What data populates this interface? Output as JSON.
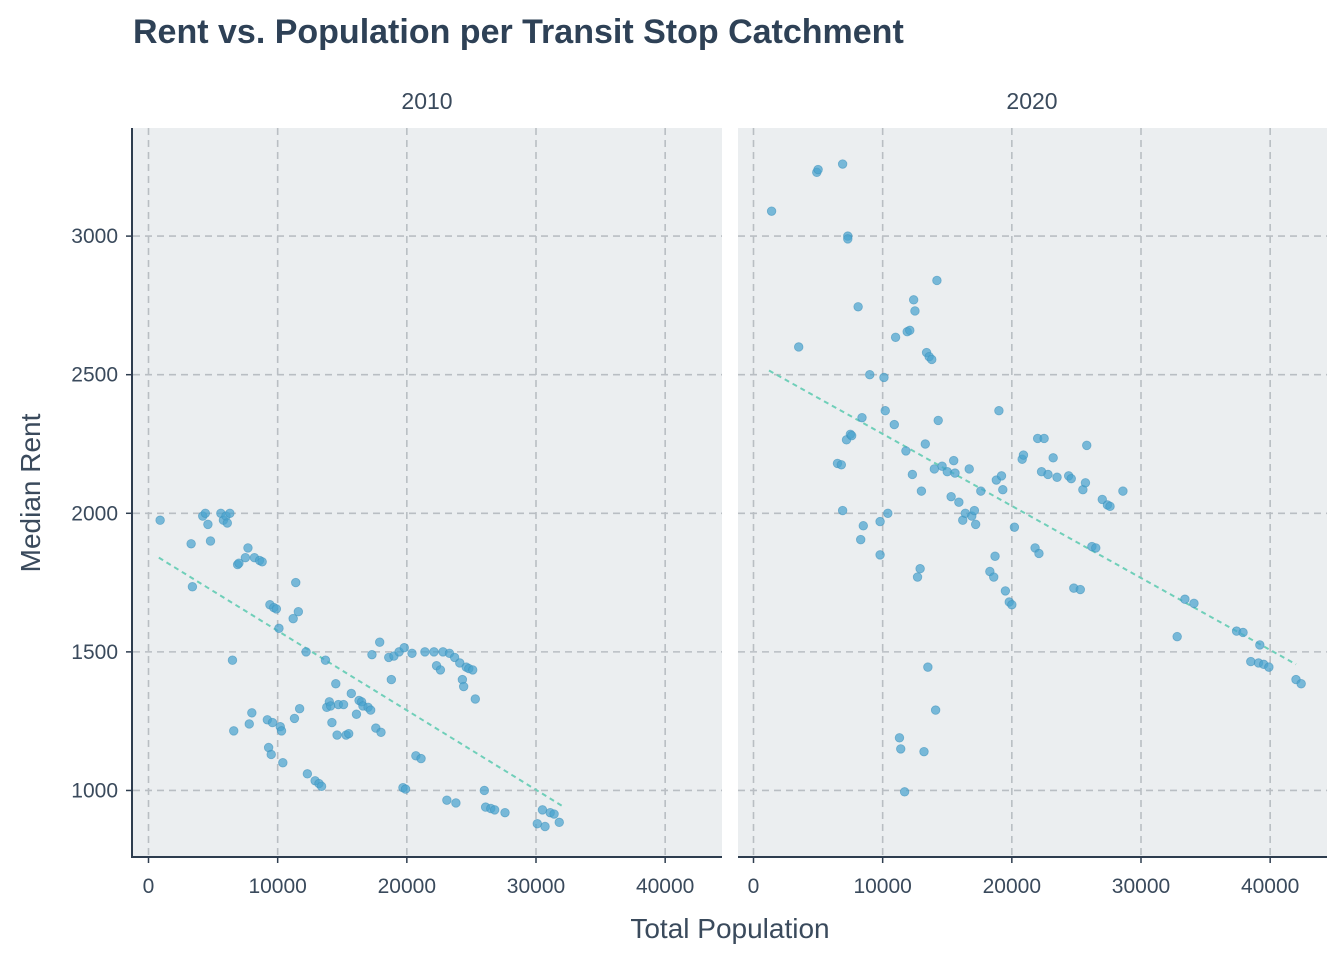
{
  "chart_data": {
    "type": "scatter",
    "title": "Rent vs. Population per Transit Stop Catchment",
    "xlabel": "Total Population",
    "ylabel": "Median Rent",
    "xlim": [
      -1200,
      44400
    ],
    "ylim": [
      760,
      3390
    ],
    "x_ticks": [
      0,
      10000,
      20000,
      30000,
      40000
    ],
    "y_ticks": [
      1000,
      1500,
      2000,
      2500,
      3000
    ],
    "grid": true,
    "grid_style": "dashed",
    "panel_background": "#ebeef0",
    "point_color": "#4aa3cf",
    "trend_color": "#6fcfb9",
    "panels": [
      {
        "label": "2010",
        "trend": {
          "x": [
            800,
            32000
          ],
          "y": [
            1840,
            945
          ]
        },
        "points": [
          [
            900,
            1975
          ],
          [
            3300,
            1890
          ],
          [
            3400,
            1735
          ],
          [
            4200,
            1990
          ],
          [
            4400,
            2000
          ],
          [
            4600,
            1960
          ],
          [
            4800,
            1900
          ],
          [
            5600,
            2000
          ],
          [
            5800,
            1975
          ],
          [
            6000,
            1990
          ],
          [
            6100,
            1965
          ],
          [
            6300,
            2000
          ],
          [
            6500,
            1470
          ],
          [
            6600,
            1215
          ],
          [
            6900,
            1815
          ],
          [
            7000,
            1820
          ],
          [
            7500,
            1840
          ],
          [
            7700,
            1875
          ],
          [
            7800,
            1240
          ],
          [
            8000,
            1280
          ],
          [
            8200,
            1840
          ],
          [
            8600,
            1830
          ],
          [
            8800,
            1825
          ],
          [
            9200,
            1255
          ],
          [
            9300,
            1155
          ],
          [
            9400,
            1670
          ],
          [
            9500,
            1130
          ],
          [
            9600,
            1245
          ],
          [
            9700,
            1660
          ],
          [
            9900,
            1655
          ],
          [
            10100,
            1585
          ],
          [
            10200,
            1230
          ],
          [
            10300,
            1215
          ],
          [
            10400,
            1100
          ],
          [
            11200,
            1620
          ],
          [
            11300,
            1260
          ],
          [
            11400,
            1750
          ],
          [
            11600,
            1645
          ],
          [
            11700,
            1295
          ],
          [
            12200,
            1500
          ],
          [
            12300,
            1060
          ],
          [
            12900,
            1035
          ],
          [
            13200,
            1025
          ],
          [
            13400,
            1015
          ],
          [
            13700,
            1470
          ],
          [
            13800,
            1300
          ],
          [
            14000,
            1320
          ],
          [
            14100,
            1305
          ],
          [
            14200,
            1245
          ],
          [
            14500,
            1385
          ],
          [
            14600,
            1200
          ],
          [
            14700,
            1310
          ],
          [
            15100,
            1310
          ],
          [
            15300,
            1200
          ],
          [
            15500,
            1205
          ],
          [
            15700,
            1350
          ],
          [
            16100,
            1275
          ],
          [
            16300,
            1325
          ],
          [
            16500,
            1320
          ],
          [
            16600,
            1305
          ],
          [
            17000,
            1300
          ],
          [
            17200,
            1290
          ],
          [
            17300,
            1490
          ],
          [
            17600,
            1225
          ],
          [
            17900,
            1535
          ],
          [
            18000,
            1210
          ],
          [
            18600,
            1480
          ],
          [
            18800,
            1400
          ],
          [
            19000,
            1485
          ],
          [
            19400,
            1500
          ],
          [
            19700,
            1010
          ],
          [
            19800,
            1515
          ],
          [
            19900,
            1005
          ],
          [
            20400,
            1495
          ],
          [
            20700,
            1125
          ],
          [
            21100,
            1115
          ],
          [
            21400,
            1500
          ],
          [
            22100,
            1500
          ],
          [
            22300,
            1450
          ],
          [
            22600,
            1435
          ],
          [
            22800,
            1500
          ],
          [
            23100,
            965
          ],
          [
            23300,
            1495
          ],
          [
            23700,
            1480
          ],
          [
            23800,
            955
          ],
          [
            24100,
            1460
          ],
          [
            24300,
            1400
          ],
          [
            24400,
            1375
          ],
          [
            24600,
            1445
          ],
          [
            24800,
            1440
          ],
          [
            25100,
            1435
          ],
          [
            25300,
            1330
          ],
          [
            26000,
            1000
          ],
          [
            26100,
            940
          ],
          [
            26500,
            935
          ],
          [
            26800,
            930
          ],
          [
            27600,
            920
          ],
          [
            30100,
            880
          ],
          [
            30500,
            930
          ],
          [
            30700,
            870
          ],
          [
            31100,
            920
          ],
          [
            31400,
            915
          ],
          [
            31800,
            885
          ]
        ]
      },
      {
        "label": "2020",
        "trend": {
          "x": [
            1200,
            42000
          ],
          "y": [
            2515,
            1455
          ]
        },
        "points": [
          [
            1400,
            3090
          ],
          [
            3500,
            2600
          ],
          [
            4900,
            3230
          ],
          [
            5000,
            3240
          ],
          [
            6500,
            2180
          ],
          [
            6800,
            2175
          ],
          [
            6900,
            2010
          ],
          [
            6900,
            3260
          ],
          [
            7200,
            2265
          ],
          [
            7300,
            3000
          ],
          [
            7300,
            2990
          ],
          [
            7500,
            2285
          ],
          [
            7600,
            2280
          ],
          [
            8100,
            2745
          ],
          [
            8300,
            1905
          ],
          [
            8400,
            2345
          ],
          [
            8500,
            1955
          ],
          [
            9000,
            2500
          ],
          [
            9800,
            1970
          ],
          [
            9800,
            1850
          ],
          [
            10100,
            2490
          ],
          [
            10200,
            2370
          ],
          [
            10400,
            2000
          ],
          [
            10900,
            2320
          ],
          [
            11000,
            2635
          ],
          [
            11300,
            1190
          ],
          [
            11400,
            1150
          ],
          [
            11700,
            995
          ],
          [
            11800,
            2225
          ],
          [
            11900,
            2655
          ],
          [
            12100,
            2660
          ],
          [
            12300,
            2140
          ],
          [
            12400,
            2770
          ],
          [
            12500,
            2730
          ],
          [
            12700,
            1770
          ],
          [
            12900,
            1800
          ],
          [
            13000,
            2080
          ],
          [
            13200,
            1140
          ],
          [
            13300,
            2250
          ],
          [
            13400,
            2580
          ],
          [
            13500,
            1445
          ],
          [
            13600,
            2565
          ],
          [
            13800,
            2555
          ],
          [
            14000,
            2160
          ],
          [
            14100,
            1290
          ],
          [
            14200,
            2840
          ],
          [
            14300,
            2335
          ],
          [
            14600,
            2170
          ],
          [
            15000,
            2150
          ],
          [
            15300,
            2060
          ],
          [
            15500,
            2190
          ],
          [
            15600,
            2145
          ],
          [
            15900,
            2040
          ],
          [
            16200,
            1975
          ],
          [
            16400,
            2000
          ],
          [
            16700,
            2160
          ],
          [
            16900,
            1990
          ],
          [
            17100,
            2010
          ],
          [
            17200,
            1960
          ],
          [
            17600,
            2080
          ],
          [
            18300,
            1790
          ],
          [
            18600,
            1770
          ],
          [
            18700,
            1845
          ],
          [
            18800,
            2120
          ],
          [
            19000,
            2370
          ],
          [
            19200,
            2135
          ],
          [
            19300,
            2085
          ],
          [
            19500,
            1720
          ],
          [
            19800,
            1680
          ],
          [
            20000,
            1670
          ],
          [
            20200,
            1950
          ],
          [
            20800,
            2195
          ],
          [
            20900,
            2210
          ],
          [
            21800,
            1875
          ],
          [
            22000,
            2270
          ],
          [
            22100,
            1855
          ],
          [
            22300,
            2150
          ],
          [
            22500,
            2270
          ],
          [
            22800,
            2140
          ],
          [
            23200,
            2200
          ],
          [
            23500,
            2130
          ],
          [
            24400,
            2135
          ],
          [
            24600,
            2125
          ],
          [
            24800,
            1730
          ],
          [
            25300,
            1725
          ],
          [
            25500,
            2085
          ],
          [
            25700,
            2110
          ],
          [
            25800,
            2245
          ],
          [
            26200,
            1880
          ],
          [
            26500,
            1875
          ],
          [
            27000,
            2050
          ],
          [
            27400,
            2030
          ],
          [
            27600,
            2025
          ],
          [
            28600,
            2080
          ],
          [
            32800,
            1555
          ],
          [
            33400,
            1690
          ],
          [
            34100,
            1675
          ],
          [
            37400,
            1575
          ],
          [
            37900,
            1570
          ],
          [
            38500,
            1465
          ],
          [
            39100,
            1460
          ],
          [
            39200,
            1525
          ],
          [
            39500,
            1455
          ],
          [
            39900,
            1445
          ],
          [
            42000,
            1400
          ],
          [
            42400,
            1385
          ]
        ]
      }
    ]
  }
}
